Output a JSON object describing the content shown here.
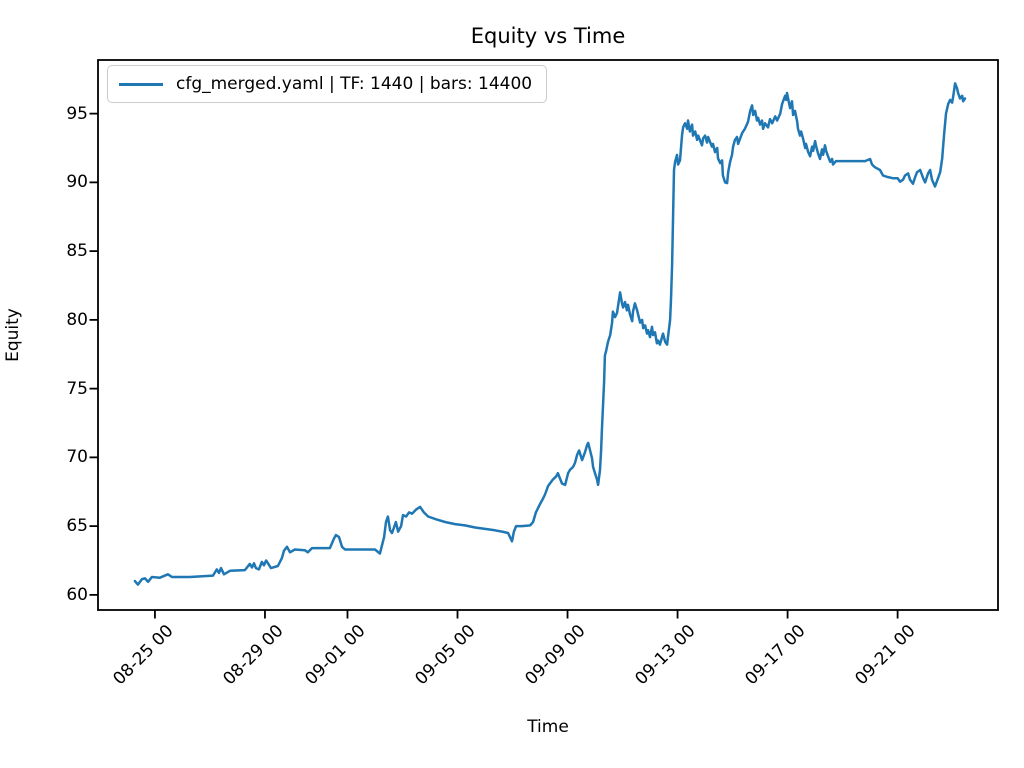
{
  "figure": {
    "title": "Equity vs Time",
    "xlabel": "Time",
    "ylabel": "Equity"
  },
  "legend": {
    "label": "cfg_merged.yaml | TF: 1440 | bars: 14400"
  },
  "colors": {
    "line": "#1f77b4",
    "spine": "#000000",
    "legend_border": "#cccccc",
    "background": "#ffffff"
  },
  "chart_data": {
    "type": "line",
    "title": "Equity vs Time",
    "xlabel": "Time",
    "ylabel": "Equity",
    "grid": false,
    "legend_position": "upper left",
    "x_axis": {
      "unit": "days relative to first labeled tick (08-25 00)",
      "lim": [
        -2.07,
        30.65
      ],
      "ticks": [
        0,
        4,
        7,
        11,
        15,
        19,
        23,
        27
      ],
      "labels": [
        "08-25 00",
        "08-29 00",
        "09-01 00",
        "09-05 00",
        "09-09 00",
        "09-13 00",
        "09-17 00",
        "09-21 00"
      ]
    },
    "y_axis": {
      "lim": [
        58.9,
        98.9
      ],
      "ticks": [
        60,
        65,
        70,
        75,
        80,
        85,
        90,
        95
      ],
      "labels": [
        "60",
        "65",
        "70",
        "75",
        "80",
        "85",
        "90",
        "95"
      ]
    },
    "series": [
      {
        "name": "cfg_merged.yaml | TF: 1440 | bars: 14400",
        "color": "#1f77b4",
        "points": [
          [
            -0.73,
            61.0
          ],
          [
            -0.62,
            60.75
          ],
          [
            -0.47,
            61.15
          ],
          [
            -0.36,
            61.2
          ],
          [
            -0.25,
            60.95
          ],
          [
            -0.11,
            61.3
          ],
          [
            0.18,
            61.25
          ],
          [
            0.47,
            61.5
          ],
          [
            0.62,
            61.3
          ],
          [
            1.27,
            61.3
          ],
          [
            2.11,
            61.4
          ],
          [
            2.25,
            61.85
          ],
          [
            2.33,
            61.6
          ],
          [
            2.4,
            61.95
          ],
          [
            2.51,
            61.5
          ],
          [
            2.73,
            61.75
          ],
          [
            3.27,
            61.8
          ],
          [
            3.45,
            62.25
          ],
          [
            3.53,
            62.0
          ],
          [
            3.6,
            62.3
          ],
          [
            3.67,
            61.95
          ],
          [
            3.78,
            61.85
          ],
          [
            3.89,
            62.4
          ],
          [
            3.96,
            62.15
          ],
          [
            4.04,
            62.5
          ],
          [
            4.11,
            62.3
          ],
          [
            4.22,
            61.95
          ],
          [
            4.47,
            62.1
          ],
          [
            4.62,
            62.7
          ],
          [
            4.69,
            63.2
          ],
          [
            4.8,
            63.5
          ],
          [
            4.91,
            63.1
          ],
          [
            5.09,
            63.3
          ],
          [
            5.45,
            63.25
          ],
          [
            5.56,
            63.1
          ],
          [
            5.71,
            63.4
          ],
          [
            6.36,
            63.4
          ],
          [
            6.51,
            64.1
          ],
          [
            6.58,
            64.35
          ],
          [
            6.69,
            64.2
          ],
          [
            6.8,
            63.5
          ],
          [
            6.91,
            63.3
          ],
          [
            8.0,
            63.3
          ],
          [
            8.18,
            63.0
          ],
          [
            8.33,
            64.2
          ],
          [
            8.4,
            65.3
          ],
          [
            8.47,
            65.7
          ],
          [
            8.55,
            64.7
          ],
          [
            8.62,
            64.5
          ],
          [
            8.69,
            64.9
          ],
          [
            8.76,
            65.3
          ],
          [
            8.84,
            64.6
          ],
          [
            8.95,
            65.0
          ],
          [
            9.02,
            65.8
          ],
          [
            9.13,
            65.7
          ],
          [
            9.24,
            66.0
          ],
          [
            9.35,
            65.9
          ],
          [
            9.49,
            66.2
          ],
          [
            9.64,
            66.4
          ],
          [
            9.78,
            66.0
          ],
          [
            9.93,
            65.7
          ],
          [
            10.22,
            65.5
          ],
          [
            10.55,
            65.3
          ],
          [
            10.91,
            65.15
          ],
          [
            11.27,
            65.05
          ],
          [
            11.64,
            64.9
          ],
          [
            12.0,
            64.8
          ],
          [
            12.36,
            64.7
          ],
          [
            12.62,
            64.6
          ],
          [
            12.84,
            64.5
          ],
          [
            12.98,
            63.9
          ],
          [
            13.05,
            64.6
          ],
          [
            13.13,
            65.0
          ],
          [
            13.35,
            65.0
          ],
          [
            13.64,
            65.05
          ],
          [
            13.75,
            65.3
          ],
          [
            13.85,
            66.0
          ],
          [
            14.0,
            66.6
          ],
          [
            14.11,
            67.0
          ],
          [
            14.18,
            67.3
          ],
          [
            14.29,
            67.9
          ],
          [
            14.36,
            68.1
          ],
          [
            14.47,
            68.4
          ],
          [
            14.58,
            68.6
          ],
          [
            14.65,
            68.85
          ],
          [
            14.8,
            68.1
          ],
          [
            14.91,
            68.0
          ],
          [
            15.02,
            68.85
          ],
          [
            15.09,
            69.1
          ],
          [
            15.2,
            69.3
          ],
          [
            15.27,
            69.6
          ],
          [
            15.35,
            70.2
          ],
          [
            15.42,
            70.5
          ],
          [
            15.53,
            69.8
          ],
          [
            15.64,
            70.4
          ],
          [
            15.71,
            70.9
          ],
          [
            15.75,
            71.05
          ],
          [
            15.82,
            70.5
          ],
          [
            15.89,
            69.95
          ],
          [
            15.93,
            69.3
          ],
          [
            16.0,
            68.85
          ],
          [
            16.07,
            68.4
          ],
          [
            16.11,
            68.0
          ],
          [
            16.18,
            69.1
          ],
          [
            16.22,
            70.5
          ],
          [
            16.25,
            72.0
          ],
          [
            16.33,
            75.5
          ],
          [
            16.36,
            77.4
          ],
          [
            16.4,
            77.7
          ],
          [
            16.47,
            78.4
          ],
          [
            16.55,
            78.9
          ],
          [
            16.62,
            79.8
          ],
          [
            16.65,
            80.6
          ],
          [
            16.73,
            80.2
          ],
          [
            16.8,
            80.5
          ],
          [
            16.91,
            82.0
          ],
          [
            16.98,
            81.2
          ],
          [
            17.02,
            80.9
          ],
          [
            17.09,
            81.3
          ],
          [
            17.16,
            80.7
          ],
          [
            17.2,
            81.1
          ],
          [
            17.27,
            80.4
          ],
          [
            17.35,
            79.9
          ],
          [
            17.38,
            80.6
          ],
          [
            17.45,
            81.2
          ],
          [
            17.53,
            80.7
          ],
          [
            17.64,
            79.8
          ],
          [
            17.71,
            80.0
          ],
          [
            17.75,
            79.4
          ],
          [
            17.82,
            79.6
          ],
          [
            17.89,
            79.0
          ],
          [
            17.93,
            79.25
          ],
          [
            18.0,
            78.75
          ],
          [
            18.07,
            79.5
          ],
          [
            18.11,
            78.9
          ],
          [
            18.18,
            79.1
          ],
          [
            18.25,
            78.3
          ],
          [
            18.29,
            78.5
          ],
          [
            18.36,
            78.2
          ],
          [
            18.47,
            79.0
          ],
          [
            18.55,
            78.4
          ],
          [
            18.62,
            78.2
          ],
          [
            18.65,
            78.7
          ],
          [
            18.73,
            80.0
          ],
          [
            18.76,
            81.5
          ],
          [
            18.8,
            84.0
          ],
          [
            18.84,
            88.0
          ],
          [
            18.87,
            90.9
          ],
          [
            18.91,
            91.5
          ],
          [
            18.98,
            92.0
          ],
          [
            19.02,
            91.3
          ],
          [
            19.09,
            91.6
          ],
          [
            19.16,
            93.4
          ],
          [
            19.2,
            94.0
          ],
          [
            19.27,
            94.3
          ],
          [
            19.35,
            93.9
          ],
          [
            19.38,
            94.5
          ],
          [
            19.45,
            93.7
          ],
          [
            19.53,
            94.2
          ],
          [
            19.56,
            93.4
          ],
          [
            19.64,
            93.7
          ],
          [
            19.71,
            93.1
          ],
          [
            19.75,
            93.4
          ],
          [
            19.89,
            92.7
          ],
          [
            19.93,
            93.2
          ],
          [
            20.0,
            93.4
          ],
          [
            20.07,
            92.9
          ],
          [
            20.11,
            93.3
          ],
          [
            20.25,
            92.6
          ],
          [
            20.29,
            92.8
          ],
          [
            20.36,
            92.2
          ],
          [
            20.44,
            92.5
          ],
          [
            20.47,
            91.75
          ],
          [
            20.55,
            91.4
          ],
          [
            20.62,
            91.6
          ],
          [
            20.65,
            90.5
          ],
          [
            20.73,
            90.0
          ],
          [
            20.8,
            89.95
          ],
          [
            20.84,
            90.75
          ],
          [
            20.91,
            91.5
          ],
          [
            20.98,
            92.0
          ],
          [
            21.02,
            92.6
          ],
          [
            21.09,
            93.1
          ],
          [
            21.16,
            93.3
          ],
          [
            21.2,
            92.8
          ],
          [
            21.35,
            93.6
          ],
          [
            21.45,
            93.9
          ],
          [
            21.56,
            94.4
          ],
          [
            21.64,
            95.2
          ],
          [
            21.71,
            95.6
          ],
          [
            21.75,
            94.9
          ],
          [
            21.82,
            95.2
          ],
          [
            21.89,
            94.5
          ],
          [
            21.93,
            94.7
          ],
          [
            22.0,
            94.2
          ],
          [
            22.07,
            94.5
          ],
          [
            22.11,
            93.9
          ],
          [
            22.18,
            94.3
          ],
          [
            22.29,
            94.0
          ],
          [
            22.36,
            94.6
          ],
          [
            22.44,
            94.3
          ],
          [
            22.55,
            94.8
          ],
          [
            22.62,
            94.5
          ],
          [
            22.73,
            95.0
          ],
          [
            22.8,
            95.7
          ],
          [
            22.91,
            96.3
          ],
          [
            22.95,
            96.0
          ],
          [
            22.98,
            96.5
          ],
          [
            23.09,
            95.4
          ],
          [
            23.16,
            95.9
          ],
          [
            23.2,
            94.9
          ],
          [
            23.27,
            95.2
          ],
          [
            23.35,
            94.4
          ],
          [
            23.38,
            93.9
          ],
          [
            23.45,
            93.4
          ],
          [
            23.49,
            93.7
          ],
          [
            23.56,
            93.2
          ],
          [
            23.64,
            92.5
          ],
          [
            23.67,
            92.8
          ],
          [
            23.75,
            92.2
          ],
          [
            23.82,
            91.9
          ],
          [
            23.89,
            92.6
          ],
          [
            23.93,
            92.3
          ],
          [
            24.0,
            93.0
          ],
          [
            24.04,
            92.6
          ],
          [
            24.11,
            92.1
          ],
          [
            24.18,
            91.7
          ],
          [
            24.25,
            92.4
          ],
          [
            24.29,
            92.0
          ],
          [
            24.36,
            92.7
          ],
          [
            24.4,
            92.3
          ],
          [
            24.47,
            91.9
          ],
          [
            24.55,
            91.5
          ],
          [
            24.62,
            91.7
          ],
          [
            24.65,
            91.3
          ],
          [
            24.76,
            91.55
          ],
          [
            25.82,
            91.55
          ],
          [
            26.0,
            91.7
          ],
          [
            26.07,
            91.3
          ],
          [
            26.18,
            91.1
          ],
          [
            26.36,
            90.9
          ],
          [
            26.47,
            90.5
          ],
          [
            26.62,
            90.4
          ],
          [
            26.84,
            90.3
          ],
          [
            27.0,
            90.3
          ],
          [
            27.09,
            90.05
          ],
          [
            27.2,
            90.2
          ],
          [
            27.27,
            90.5
          ],
          [
            27.38,
            90.65
          ],
          [
            27.45,
            90.2
          ],
          [
            27.56,
            89.9
          ],
          [
            27.64,
            90.4
          ],
          [
            27.71,
            90.75
          ],
          [
            27.82,
            90.9
          ],
          [
            27.93,
            90.3
          ],
          [
            28.0,
            90.0
          ],
          [
            28.11,
            90.65
          ],
          [
            28.18,
            90.9
          ],
          [
            28.25,
            90.2
          ],
          [
            28.36,
            89.7
          ],
          [
            28.47,
            90.3
          ],
          [
            28.55,
            90.75
          ],
          [
            28.62,
            91.75
          ],
          [
            28.69,
            93.5
          ],
          [
            28.76,
            95.0
          ],
          [
            28.84,
            95.7
          ],
          [
            28.91,
            96.0
          ],
          [
            28.98,
            95.8
          ],
          [
            29.02,
            96.25
          ],
          [
            29.09,
            97.2
          ],
          [
            29.16,
            96.85
          ],
          [
            29.2,
            96.5
          ],
          [
            29.27,
            96.1
          ],
          [
            29.35,
            96.3
          ],
          [
            29.38,
            95.9
          ],
          [
            29.45,
            96.1
          ]
        ]
      }
    ]
  }
}
